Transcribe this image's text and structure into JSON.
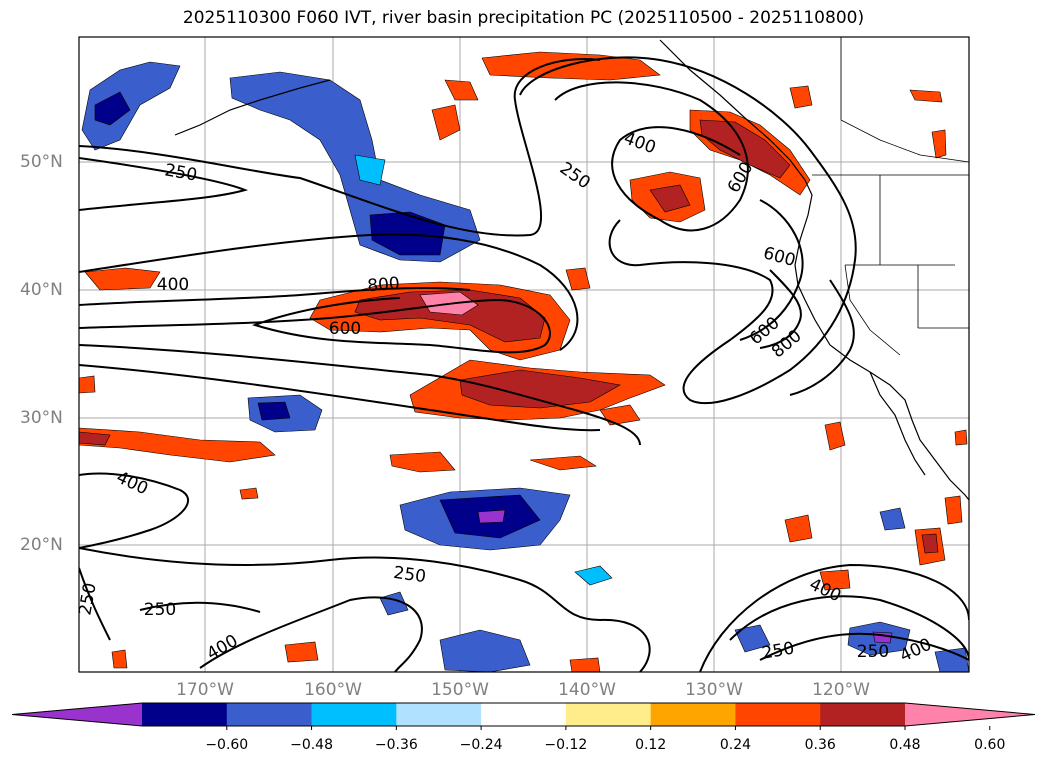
{
  "title": "2025110300 F060 IVT, river basin precipitation PC (2025110500 - 2025110800)",
  "map": {
    "lat_labels": [
      "50°N",
      "40°N",
      "30°N",
      "20°N"
    ],
    "lon_labels": [
      "170°W",
      "160°W",
      "150°W",
      "140°W",
      "130°W",
      "120°W"
    ],
    "gridlines": true
  },
  "colorbar": {
    "ticks": [
      "−0.60",
      "−0.48",
      "−0.36",
      "−0.24",
      "−0.12",
      "0.12",
      "0.24",
      "0.36",
      "0.48",
      "0.60"
    ],
    "colors": [
      "#9a32cd",
      "#00008b",
      "#3a5fcd",
      "#00bfff",
      "#b0e2ff",
      "#ffffff",
      "#ffec8b",
      "#ffa500",
      "#ff4500",
      "#b22222",
      "#ff82ab"
    ],
    "extend": "both"
  },
  "ivt_contour_labels": {
    "c250": "250",
    "c400": "400",
    "c600": "600",
    "c800": "800"
  }
}
